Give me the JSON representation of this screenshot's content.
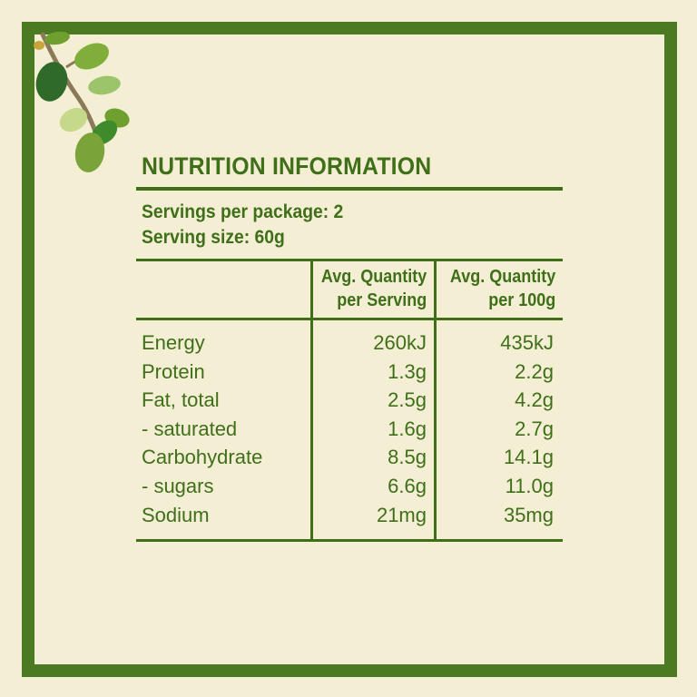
{
  "title": "NUTRITION INFORMATION",
  "servings_per_package": "Servings per package: 2",
  "serving_size": "Serving size: 60g",
  "columns": {
    "per_serving_line1": "Avg. Quantity",
    "per_serving_line2": "per Serving",
    "per_100g_line1": "Avg. Quantity",
    "per_100g_line2": "per 100g"
  },
  "rows": [
    {
      "label": "Energy",
      "per_serving": "260kJ",
      "per_100g": "435kJ"
    },
    {
      "label": "Protein",
      "per_serving": "1.3g",
      "per_100g": "2.2g"
    },
    {
      "label": "Fat, total",
      "per_serving": "2.5g",
      "per_100g": "4.2g"
    },
    {
      "label": "- saturated",
      "per_serving": "1.6g",
      "per_100g": "2.7g"
    },
    {
      "label": "Carbohydrate",
      "per_serving": "8.5g",
      "per_100g": "14.1g"
    },
    {
      "label": "- sugars",
      "per_serving": "6.6g",
      "per_100g": "11.0g"
    },
    {
      "label": "Sodium",
      "per_serving": "21mg",
      "per_100g": "35mg"
    }
  ],
  "colors": {
    "border": "#4c7a22",
    "text": "#3f6f19",
    "background": "#f4efd4"
  },
  "decoration": {
    "corner_icon": "leafy-branch-icon"
  }
}
